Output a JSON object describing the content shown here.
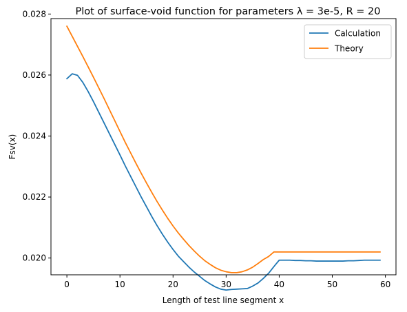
{
  "chart_data": {
    "type": "line",
    "title": "Plot of surface-void function for parameters λ = 3e-5, R = 20",
    "xlabel": "Length of test line segment x",
    "ylabel": "Fsv(x)",
    "xlim": [
      -3,
      62
    ],
    "ylim": [
      0.01945,
      0.02785
    ],
    "x_ticks": [
      0,
      10,
      20,
      30,
      40,
      50,
      60
    ],
    "y_ticks": [
      0.02,
      0.022,
      0.024,
      0.026,
      0.028
    ],
    "x_tick_labels": [
      "0",
      "10",
      "20",
      "30",
      "40",
      "50",
      "60"
    ],
    "y_tick_labels": [
      "0.020",
      "0.022",
      "0.024",
      "0.026",
      "0.028"
    ],
    "grid": false,
    "legend_position": "top-right",
    "series": [
      {
        "name": "Calculation",
        "color": "#1f77b4",
        "x": [
          0,
          1,
          2,
          3,
          4,
          5,
          6,
          7,
          8,
          9,
          10,
          11,
          12,
          13,
          14,
          15,
          16,
          17,
          18,
          19,
          20,
          21,
          22,
          23,
          24,
          25,
          26,
          27,
          28,
          29,
          30,
          31,
          32,
          33,
          34,
          35,
          36,
          37,
          38,
          39,
          40,
          41,
          42,
          43,
          44,
          45,
          46,
          47,
          48,
          49,
          50,
          51,
          52,
          53,
          54,
          55,
          56,
          57,
          58,
          59
        ],
        "y": [
          0.02588,
          0.02604,
          0.02599,
          0.02576,
          0.02546,
          0.02513,
          0.02478,
          0.02443,
          0.02408,
          0.02373,
          0.02338,
          0.02302,
          0.02268,
          0.02234,
          0.022,
          0.02168,
          0.02136,
          0.02106,
          0.02078,
          0.02052,
          0.02028,
          0.02006,
          0.01988,
          0.0197,
          0.01954,
          0.0194,
          0.01926,
          0.01915,
          0.01905,
          0.01898,
          0.01895,
          0.01897,
          0.01898,
          0.01899,
          0.019,
          0.01908,
          0.01918,
          0.01933,
          0.0195,
          0.01972,
          0.01993,
          0.01993,
          0.01993,
          0.01992,
          0.01992,
          0.01991,
          0.01991,
          0.0199,
          0.0199,
          0.0199,
          0.0199,
          0.0199,
          0.0199,
          0.01991,
          0.01991,
          0.01992,
          0.01993,
          0.01993,
          0.01993,
          0.01993
        ]
      },
      {
        "name": "Theory",
        "color": "#ff7f0e",
        "x": [
          0,
          1,
          2,
          3,
          4,
          5,
          6,
          7,
          8,
          9,
          10,
          11,
          12,
          13,
          14,
          15,
          16,
          17,
          18,
          19,
          20,
          21,
          22,
          23,
          24,
          25,
          26,
          27,
          28,
          29,
          30,
          31,
          32,
          33,
          34,
          35,
          36,
          37,
          38,
          39,
          40,
          41,
          42,
          43,
          44,
          45,
          46,
          47,
          48,
          49,
          50,
          51,
          52,
          53,
          54,
          55,
          56,
          57,
          58,
          59
        ],
        "y": [
          0.0276,
          0.02727,
          0.02694,
          0.02661,
          0.02627,
          0.02593,
          0.02558,
          0.02523,
          0.02487,
          0.02451,
          0.02415,
          0.02379,
          0.02345,
          0.02311,
          0.02278,
          0.02246,
          0.02215,
          0.02185,
          0.02157,
          0.0213,
          0.02105,
          0.02082,
          0.02061,
          0.02041,
          0.02023,
          0.02006,
          0.01991,
          0.01979,
          0.01968,
          0.0196,
          0.01955,
          0.01952,
          0.01952,
          0.01955,
          0.01961,
          0.0197,
          0.01982,
          0.01995,
          0.02005,
          0.0202,
          0.0202,
          0.0202,
          0.0202,
          0.0202,
          0.0202,
          0.0202,
          0.0202,
          0.0202,
          0.0202,
          0.0202,
          0.0202,
          0.0202,
          0.0202,
          0.0202,
          0.0202,
          0.0202,
          0.0202,
          0.0202,
          0.0202,
          0.0202
        ]
      }
    ]
  }
}
